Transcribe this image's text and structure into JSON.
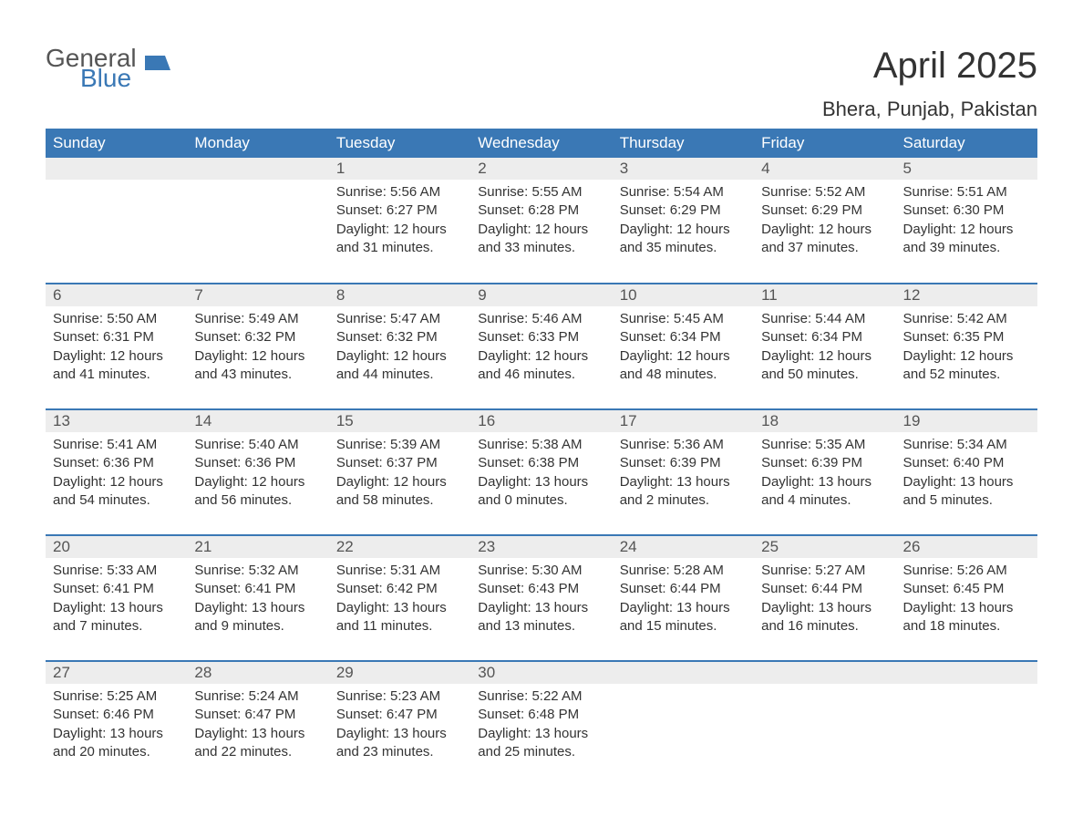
{
  "brand": {
    "part1": "General",
    "part2": "Blue"
  },
  "title": "April 2025",
  "location": "Bhera, Punjab, Pakistan",
  "colors": {
    "header_bg": "#3a78b5",
    "header_text": "#ffffff",
    "daynum_bg": "#ededed",
    "daynum_text": "#555555",
    "body_text": "#333333",
    "row_divider": "#3a78b5",
    "page_bg": "#ffffff"
  },
  "day_headers": [
    "Sunday",
    "Monday",
    "Tuesday",
    "Wednesday",
    "Thursday",
    "Friday",
    "Saturday"
  ],
  "weeks": [
    [
      null,
      null,
      {
        "n": "1",
        "sunrise": "5:56 AM",
        "sunset": "6:27 PM",
        "daylight": "12 hours and 31 minutes."
      },
      {
        "n": "2",
        "sunrise": "5:55 AM",
        "sunset": "6:28 PM",
        "daylight": "12 hours and 33 minutes."
      },
      {
        "n": "3",
        "sunrise": "5:54 AM",
        "sunset": "6:29 PM",
        "daylight": "12 hours and 35 minutes."
      },
      {
        "n": "4",
        "sunrise": "5:52 AM",
        "sunset": "6:29 PM",
        "daylight": "12 hours and 37 minutes."
      },
      {
        "n": "5",
        "sunrise": "5:51 AM",
        "sunset": "6:30 PM",
        "daylight": "12 hours and 39 minutes."
      }
    ],
    [
      {
        "n": "6",
        "sunrise": "5:50 AM",
        "sunset": "6:31 PM",
        "daylight": "12 hours and 41 minutes."
      },
      {
        "n": "7",
        "sunrise": "5:49 AM",
        "sunset": "6:32 PM",
        "daylight": "12 hours and 43 minutes."
      },
      {
        "n": "8",
        "sunrise": "5:47 AM",
        "sunset": "6:32 PM",
        "daylight": "12 hours and 44 minutes."
      },
      {
        "n": "9",
        "sunrise": "5:46 AM",
        "sunset": "6:33 PM",
        "daylight": "12 hours and 46 minutes."
      },
      {
        "n": "10",
        "sunrise": "5:45 AM",
        "sunset": "6:34 PM",
        "daylight": "12 hours and 48 minutes."
      },
      {
        "n": "11",
        "sunrise": "5:44 AM",
        "sunset": "6:34 PM",
        "daylight": "12 hours and 50 minutes."
      },
      {
        "n": "12",
        "sunrise": "5:42 AM",
        "sunset": "6:35 PM",
        "daylight": "12 hours and 52 minutes."
      }
    ],
    [
      {
        "n": "13",
        "sunrise": "5:41 AM",
        "sunset": "6:36 PM",
        "daylight": "12 hours and 54 minutes."
      },
      {
        "n": "14",
        "sunrise": "5:40 AM",
        "sunset": "6:36 PM",
        "daylight": "12 hours and 56 minutes."
      },
      {
        "n": "15",
        "sunrise": "5:39 AM",
        "sunset": "6:37 PM",
        "daylight": "12 hours and 58 minutes."
      },
      {
        "n": "16",
        "sunrise": "5:38 AM",
        "sunset": "6:38 PM",
        "daylight": "13 hours and 0 minutes."
      },
      {
        "n": "17",
        "sunrise": "5:36 AM",
        "sunset": "6:39 PM",
        "daylight": "13 hours and 2 minutes."
      },
      {
        "n": "18",
        "sunrise": "5:35 AM",
        "sunset": "6:39 PM",
        "daylight": "13 hours and 4 minutes."
      },
      {
        "n": "19",
        "sunrise": "5:34 AM",
        "sunset": "6:40 PM",
        "daylight": "13 hours and 5 minutes."
      }
    ],
    [
      {
        "n": "20",
        "sunrise": "5:33 AM",
        "sunset": "6:41 PM",
        "daylight": "13 hours and 7 minutes."
      },
      {
        "n": "21",
        "sunrise": "5:32 AM",
        "sunset": "6:41 PM",
        "daylight": "13 hours and 9 minutes."
      },
      {
        "n": "22",
        "sunrise": "5:31 AM",
        "sunset": "6:42 PM",
        "daylight": "13 hours and 11 minutes."
      },
      {
        "n": "23",
        "sunrise": "5:30 AM",
        "sunset": "6:43 PM",
        "daylight": "13 hours and 13 minutes."
      },
      {
        "n": "24",
        "sunrise": "5:28 AM",
        "sunset": "6:44 PM",
        "daylight": "13 hours and 15 minutes."
      },
      {
        "n": "25",
        "sunrise": "5:27 AM",
        "sunset": "6:44 PM",
        "daylight": "13 hours and 16 minutes."
      },
      {
        "n": "26",
        "sunrise": "5:26 AM",
        "sunset": "6:45 PM",
        "daylight": "13 hours and 18 minutes."
      }
    ],
    [
      {
        "n": "27",
        "sunrise": "5:25 AM",
        "sunset": "6:46 PM",
        "daylight": "13 hours and 20 minutes."
      },
      {
        "n": "28",
        "sunrise": "5:24 AM",
        "sunset": "6:47 PM",
        "daylight": "13 hours and 22 minutes."
      },
      {
        "n": "29",
        "sunrise": "5:23 AM",
        "sunset": "6:47 PM",
        "daylight": "13 hours and 23 minutes."
      },
      {
        "n": "30",
        "sunrise": "5:22 AM",
        "sunset": "6:48 PM",
        "daylight": "13 hours and 25 minutes."
      },
      null,
      null,
      null
    ]
  ],
  "labels": {
    "sunrise": "Sunrise: ",
    "sunset": "Sunset: ",
    "daylight": "Daylight: "
  }
}
